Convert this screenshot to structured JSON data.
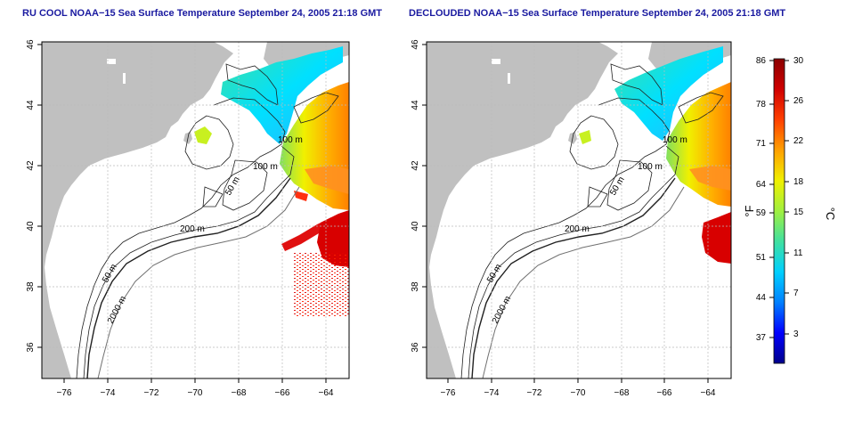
{
  "panels": [
    {
      "title": "RU COOL NOAA−15 Sea Surface Temperature September 24, 2005 21:18 GMT",
      "contour_labels": [
        "100 m",
        "100 m",
        "50 m",
        "200 m",
        "50 m",
        "2000 m"
      ]
    },
    {
      "title": "DECLOUDED NOAA−15 Sea Surface Temperature September 24, 2005 21:18 GMT",
      "contour_labels": [
        "100 m",
        "100 m",
        "50 m",
        "200 m",
        "50 m",
        "2000 m"
      ]
    }
  ],
  "axes": {
    "x_ticks": [
      "−76",
      "−74",
      "−72",
      "−70",
      "−68",
      "−66",
      "−64"
    ],
    "y_ticks": [
      "36",
      "38",
      "40",
      "42",
      "44",
      "46"
    ],
    "lon_range": [
      -77,
      -63
    ],
    "lat_range": [
      35,
      46
    ],
    "grid": "dotted"
  },
  "colorbar": {
    "f_label": "°F",
    "c_label": "°C",
    "f_ticks": [
      "86",
      "78",
      "71",
      "64",
      "59",
      "51",
      "44",
      "37"
    ],
    "c_ticks": [
      "30",
      "26",
      "22",
      "18",
      "15",
      "11",
      "7",
      "3"
    ],
    "colors": [
      "#00008b",
      "#0000ff",
      "#0080ff",
      "#00d0ff",
      "#40e0a0",
      "#a0f040",
      "#f0f000",
      "#ffa000",
      "#ff4000",
      "#d00000",
      "#8b0000"
    ]
  },
  "colors": {
    "land": "#c0c0c0",
    "ocean": "#ffffff",
    "title": "#1a1aa0"
  }
}
